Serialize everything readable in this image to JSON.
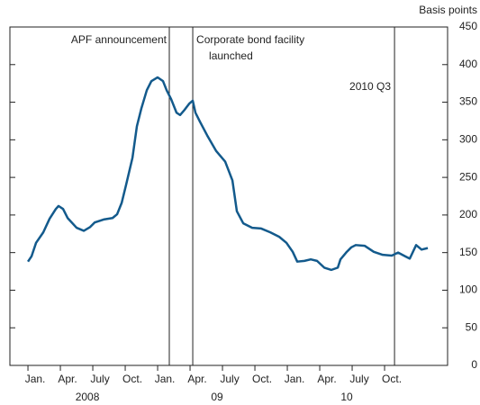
{
  "chart_data": {
    "type": "line",
    "y_axis_label": "Basis points",
    "x": [
      0,
      0.33,
      0.75,
      1.42,
      2,
      2.58,
      2.83,
      3.25,
      3.67,
      4.5,
      5.17,
      5.75,
      6.17,
      7,
      7.83,
      8.25,
      8.67,
      9.08,
      9.67,
      10.08,
      10.5,
      11,
      11.42,
      12,
      12.5,
      12.83,
      13.25,
      13.75,
      14.08,
      14.5,
      14.92,
      15.25,
      15.5,
      15.92,
      16.58,
      17.42,
      18.25,
      18.92,
      19.33,
      19.92,
      20.75,
      21.58,
      22.42,
      23.25,
      23.92,
      24.5,
      24.92,
      25.58,
      26.17,
      26.75,
      27.42,
      28.08,
      28.67,
      28.92,
      29.5,
      29.92,
      30.33,
      31.17,
      32,
      32.83,
      33.67,
      34.25,
      34.92,
      35.33,
      35.92,
      36.42,
      37
    ],
    "series": [
      {
        "color": "#135a8c",
        "values": [
          138,
          145,
          163,
          177,
          195,
          208,
          212,
          208,
          196,
          183,
          179,
          184,
          190,
          194,
          196,
          201,
          216,
          240,
          276,
          318,
          342,
          366,
          378,
          383,
          378,
          366,
          354,
          336,
          333,
          340,
          348,
          352,
          336,
          324,
          306,
          285,
          271,
          246,
          205,
          189,
          183,
          182,
          177,
          171,
          163,
          151,
          138,
          139,
          141,
          139,
          130,
          127,
          130,
          141,
          151,
          157,
          160,
          159,
          151,
          147,
          146,
          150,
          145,
          142,
          160,
          154,
          156
        ]
      }
    ],
    "xlim": [
      -1.67,
      38.83
    ],
    "xticks": [
      {
        "value": 0,
        "label": "Jan."
      },
      {
        "value": 3,
        "label": "Apr."
      },
      {
        "value": 6,
        "label": "July"
      },
      {
        "value": 9,
        "label": "Oct."
      },
      {
        "value": 12,
        "label": "Jan."
      },
      {
        "value": 15,
        "label": "Apr."
      },
      {
        "value": 18,
        "label": "July"
      },
      {
        "value": 21,
        "label": "Oct."
      },
      {
        "value": 24,
        "label": "Jan."
      },
      {
        "value": 27,
        "label": "Apr."
      },
      {
        "value": 30,
        "label": "July"
      },
      {
        "value": 33,
        "label": "Oct."
      }
    ],
    "year_ticks": [
      {
        "value": 5.5,
        "label": "2008"
      },
      {
        "value": 17.5,
        "label": "09"
      },
      {
        "value": 29.5,
        "label": "10"
      }
    ],
    "ylim": [
      0,
      450
    ],
    "yticks": [
      0,
      50,
      100,
      150,
      200,
      250,
      300,
      350,
      400,
      450
    ],
    "annotations": [
      {
        "x": 13.08,
        "label": [
          "APF announcement"
        ]
      },
      {
        "x": 15.25,
        "label": [
          "Corporate bond facility",
          "launched"
        ]
      },
      {
        "x": 33.92,
        "label": [
          "2010 Q3"
        ]
      }
    ]
  }
}
